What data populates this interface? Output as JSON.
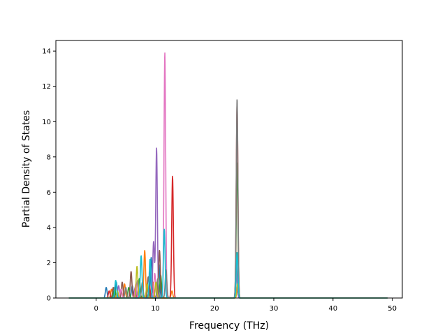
{
  "chart_data": {
    "type": "line",
    "title": "",
    "xlabel": "Frequency (THz)",
    "ylabel": "Partial Density of States",
    "xlim": [
      -6.8,
      51.7
    ],
    "ylim": [
      0,
      14.6
    ],
    "xticks": [
      0,
      10,
      20,
      30,
      40,
      50
    ],
    "yticks": [
      0,
      2,
      4,
      6,
      8,
      10,
      12,
      14
    ],
    "grid": false,
    "legend": "none",
    "x_range_data": [
      -4.6,
      49.2
    ],
    "colors": [
      "#1f77b4",
      "#ff7f0e",
      "#2ca02c",
      "#d62728",
      "#9467bd",
      "#8c564b",
      "#e377c2",
      "#7f7f7f",
      "#bcbd22",
      "#17becf"
    ],
    "series": [
      {
        "peaks": [
          [
            1.7,
            0.6
          ],
          [
            3.4,
            0.9
          ],
          [
            6.1,
            0.7
          ],
          [
            9.3,
            2.3
          ],
          [
            10.6,
            1.9
          ],
          [
            23.8,
            0.5
          ]
        ]
      },
      {
        "peaks": [
          [
            2.6,
            0.5
          ],
          [
            4.8,
            0.8
          ],
          [
            8.2,
            2.7
          ],
          [
            9.6,
            0.9
          ],
          [
            12.8,
            0.4
          ],
          [
            23.9,
            0.6
          ]
        ]
      },
      {
        "peaks": [
          [
            3.1,
            0.6
          ],
          [
            5.5,
            0.6
          ],
          [
            7.3,
            1.1
          ],
          [
            10.9,
            1.3
          ],
          [
            23.8,
            7.7
          ]
        ]
      },
      {
        "peaks": [
          [
            2.2,
            0.4
          ],
          [
            6.6,
            0.6
          ],
          [
            9.0,
            0.7
          ],
          [
            12.9,
            6.9
          ],
          [
            23.8,
            11.0
          ]
        ]
      },
      {
        "peaks": [
          [
            3.8,
            0.7
          ],
          [
            7.0,
            1.0
          ],
          [
            9.7,
            3.2
          ],
          [
            10.2,
            8.5
          ],
          [
            23.7,
            1.5
          ]
        ]
      },
      {
        "peaks": [
          [
            2.9,
            0.6
          ],
          [
            4.4,
            0.9
          ],
          [
            5.9,
            1.5
          ],
          [
            8.8,
            1.2
          ],
          [
            10.7,
            2.7
          ],
          [
            23.8,
            1.9
          ]
        ]
      },
      {
        "peaks": [
          [
            4.2,
            0.5
          ],
          [
            6.7,
            0.8
          ],
          [
            9.9,
            1.4
          ],
          [
            11.6,
            13.9
          ],
          [
            23.8,
            2.2
          ]
        ]
      },
      {
        "peaks": [
          [
            5.0,
            0.6
          ],
          [
            7.8,
            0.9
          ],
          [
            10.4,
            1.1
          ],
          [
            11.8,
            1.6
          ],
          [
            23.8,
            11.3
          ]
        ]
      },
      {
        "peaks": [
          [
            3.6,
            0.4
          ],
          [
            6.9,
            1.8
          ],
          [
            8.6,
            0.8
          ],
          [
            10.1,
            0.9
          ],
          [
            23.9,
            0.8
          ]
        ]
      },
      {
        "peaks": [
          [
            3.3,
            1.0
          ],
          [
            7.6,
            2.4
          ],
          [
            9.1,
            2.2
          ],
          [
            11.5,
            3.9
          ],
          [
            23.8,
            2.6
          ]
        ]
      }
    ]
  }
}
